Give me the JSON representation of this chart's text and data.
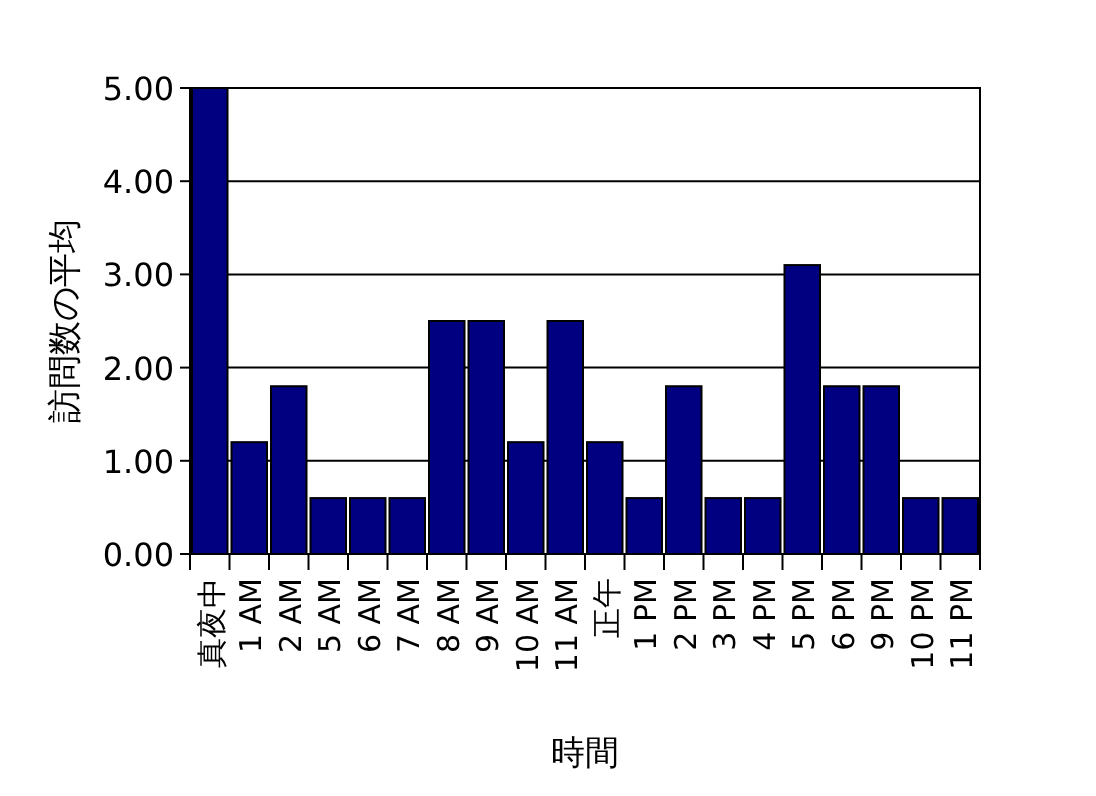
{
  "chart_data": {
    "type": "bar",
    "xlabel": "時間",
    "ylabel": "訪問数の平均",
    "categories": [
      "真夜中",
      "1 AM",
      "2 AM",
      "5 AM",
      "6 AM",
      "7 AM",
      "8 AM",
      "9 AM",
      "10 AM",
      "11 AM",
      "正午",
      "1 PM",
      "2 PM",
      "3 PM",
      "4 PM",
      "5 PM",
      "6 PM",
      "9 PM",
      "10 PM",
      "11 PM"
    ],
    "values": [
      5.0,
      1.2,
      1.8,
      0.6,
      0.6,
      0.6,
      2.5,
      2.5,
      1.2,
      2.5,
      1.2,
      0.6,
      1.8,
      0.6,
      0.6,
      3.1,
      1.8,
      1.8,
      0.6,
      0.6
    ],
    "color": "#000080",
    "ylim": [
      0,
      5
    ],
    "yticks": [
      {
        "value": 0,
        "label": "0.00"
      },
      {
        "value": 1,
        "label": "1.00"
      },
      {
        "value": 2,
        "label": "2.00"
      },
      {
        "value": 3,
        "label": "3.00"
      },
      {
        "value": 4,
        "label": "4.00"
      },
      {
        "value": 5,
        "label": "5.00"
      }
    ],
    "grid": "y"
  }
}
